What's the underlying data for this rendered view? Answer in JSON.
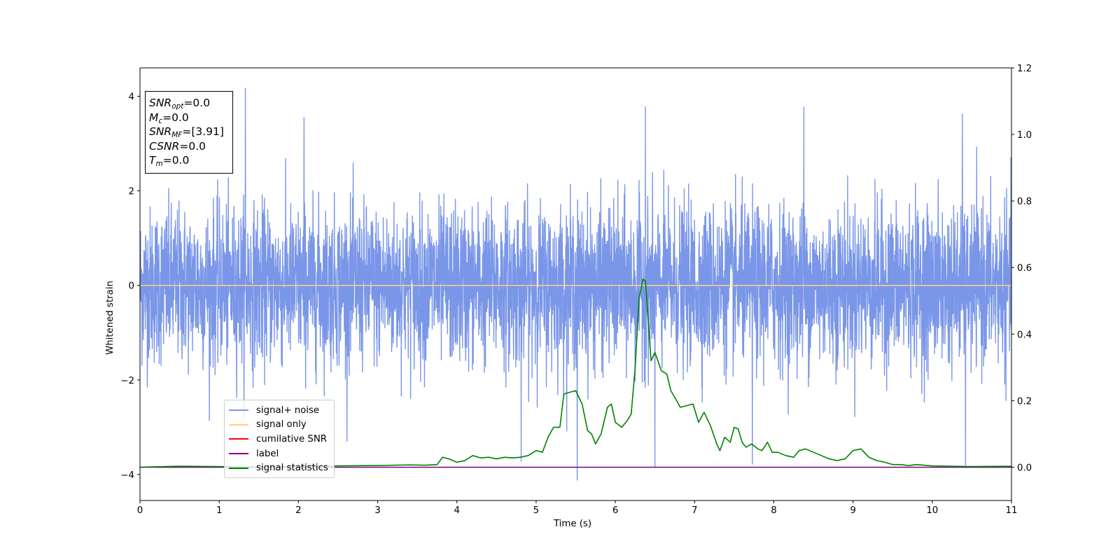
{
  "figure": {
    "info_box": {
      "snr_opt": {
        "sym": "SNR",
        "sub": "opt",
        "val": "=0.0"
      },
      "mc": {
        "sym": "M",
        "sub": "c",
        "val": "=0.0"
      },
      "snr_mf": {
        "sym": "SNR",
        "sub": "MF",
        "val": "=[3.91]"
      },
      "csnr": {
        "sym": "CSNR",
        "val": "=0.0"
      },
      "tm": {
        "sym": "T",
        "sub": "m",
        "val": "=0.0"
      }
    },
    "legend": [
      {
        "label": "signal+ noise",
        "color": "#7a96e8"
      },
      {
        "label": "signal only",
        "color": "#ffd280"
      },
      {
        "label": "cumilative SNR",
        "color": "#ff0000"
      },
      {
        "label": "label",
        "color": "#800080"
      },
      {
        "label": "signal statistics",
        "color": "#008000"
      }
    ]
  },
  "chart_data": {
    "type": "line",
    "xlabel": "Time (s)",
    "ylabel": "Whitened strain",
    "xlim": [
      0,
      11
    ],
    "ylim": [
      -4.55,
      4.6
    ],
    "y2lim": [
      -0.1,
      1.2
    ],
    "xticks": [
      "0",
      "1",
      "2",
      "3",
      "4",
      "5",
      "6",
      "7",
      "8",
      "9",
      "10",
      "11"
    ],
    "yticks": [
      "−4",
      "−2",
      "0",
      "2",
      "4"
    ],
    "y2ticks": [
      "0.0",
      "0.2",
      "0.4",
      "0.6",
      "0.8",
      "1.0",
      "1.2"
    ],
    "grid": false,
    "legend_position": "lower-left",
    "series": [
      {
        "name": "signal+ noise",
        "axis": "left",
        "color": "#7a96e8",
        "description_sampled": true,
        "noise_std": 0.82,
        "t_range": [
          0,
          11
        ],
        "visible_extremes": [
          [
            1.33,
            4.17
          ],
          [
            5.52,
            -4.12
          ],
          [
            6.38,
            3.78
          ],
          [
            8.38,
            3.77
          ],
          [
            10.38,
            3.62
          ],
          [
            2.07,
            3.55
          ],
          [
            4.81,
            -3.72
          ],
          [
            6.5,
            -3.85
          ],
          [
            7.73,
            -3.78
          ],
          [
            10.42,
            -3.8
          ]
        ]
      },
      {
        "name": "signal only",
        "axis": "left",
        "color": "#ffd280",
        "x": [
          0,
          11
        ],
        "y": [
          0,
          0
        ]
      },
      {
        "name": "cumilative SNR",
        "axis": "right",
        "color": "#ff0000",
        "x": [],
        "y": []
      },
      {
        "name": "label",
        "axis": "right",
        "color": "#800080",
        "x": [
          0,
          11
        ],
        "y": [
          0,
          0
        ]
      },
      {
        "name": "signal statistics",
        "axis": "right",
        "color": "#008000",
        "x": [
          0,
          0.5,
          1.0,
          1.5,
          2.0,
          2.5,
          3.0,
          3.4,
          3.6,
          3.75,
          3.82,
          3.9,
          4.0,
          4.1,
          4.2,
          4.3,
          4.4,
          4.5,
          4.6,
          4.7,
          4.8,
          4.9,
          5.0,
          5.08,
          5.15,
          5.22,
          5.3,
          5.35,
          5.42,
          5.5,
          5.58,
          5.65,
          5.7,
          5.75,
          5.82,
          5.9,
          5.95,
          6.0,
          6.08,
          6.15,
          6.2,
          6.25,
          6.3,
          6.35,
          6.38,
          6.45,
          6.5,
          6.58,
          6.65,
          6.7,
          6.75,
          6.82,
          6.9,
          6.98,
          7.05,
          7.12,
          7.2,
          7.28,
          7.32,
          7.38,
          7.45,
          7.5,
          7.55,
          7.6,
          7.65,
          7.72,
          7.8,
          7.85,
          7.92,
          7.98,
          8.05,
          8.15,
          8.25,
          8.32,
          8.4,
          8.5,
          8.6,
          8.7,
          8.8,
          8.9,
          9.0,
          9.1,
          9.2,
          9.3,
          9.4,
          9.5,
          9.6,
          9.7,
          9.8,
          10.0,
          10.5,
          11.0
        ],
        "y": [
          0.0,
          0.003,
          0.002,
          0.001,
          0.002,
          0.004,
          0.005,
          0.007,
          0.006,
          0.008,
          0.03,
          0.025,
          0.015,
          0.02,
          0.035,
          0.028,
          0.03,
          0.025,
          0.03,
          0.028,
          0.03,
          0.035,
          0.05,
          0.045,
          0.09,
          0.12,
          0.12,
          0.22,
          0.225,
          0.23,
          0.19,
          0.11,
          0.1,
          0.07,
          0.1,
          0.18,
          0.19,
          0.135,
          0.12,
          0.14,
          0.16,
          0.3,
          0.51,
          0.565,
          0.56,
          0.32,
          0.345,
          0.29,
          0.28,
          0.23,
          0.21,
          0.18,
          0.185,
          0.19,
          0.135,
          0.165,
          0.125,
          0.07,
          0.05,
          0.09,
          0.075,
          0.12,
          0.115,
          0.075,
          0.06,
          0.07,
          0.055,
          0.05,
          0.075,
          0.045,
          0.045,
          0.035,
          0.03,
          0.05,
          0.055,
          0.045,
          0.035,
          0.025,
          0.02,
          0.025,
          0.05,
          0.055,
          0.03,
          0.02,
          0.015,
          0.008,
          0.008,
          0.005,
          0.008,
          0.004,
          0.002,
          0.003
        ]
      }
    ]
  }
}
